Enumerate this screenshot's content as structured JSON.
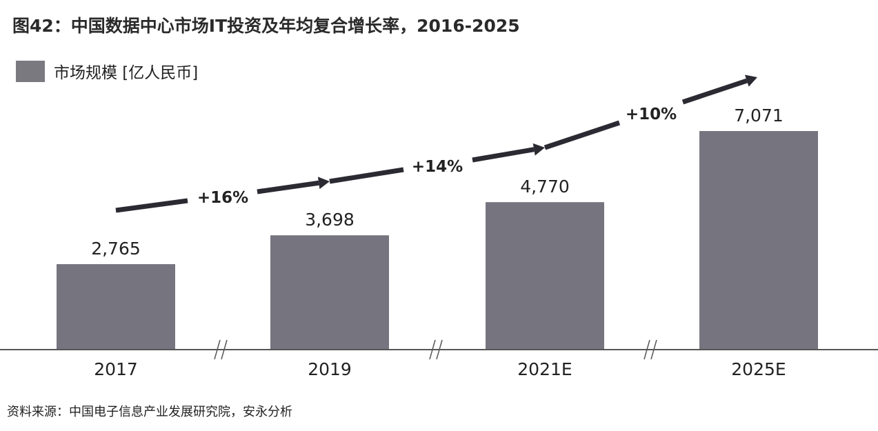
{
  "chart_data": {
    "type": "bar",
    "title": "图42：中国数据中心市场IT投资及年均复合增长率，2016-2025",
    "legend": [
      "市场规模 [亿人民币]"
    ],
    "legend_placement": "top-left",
    "categories": [
      "2017",
      "2019",
      "2021E",
      "2025E"
    ],
    "values": [
      2765,
      3698,
      4770,
      7071
    ],
    "value_labels": [
      "2,765",
      "3,698",
      "4,770",
      "7,071"
    ],
    "growth_annotations": [
      "+16%",
      "+14%",
      "+10%"
    ],
    "ylim": [
      0,
      7071
    ],
    "grid": false,
    "bar_color": "#76757f",
    "arrow_color": "#2b2a33",
    "source": "资料来源：中国电子信息产业发展研究院，安永分析"
  }
}
